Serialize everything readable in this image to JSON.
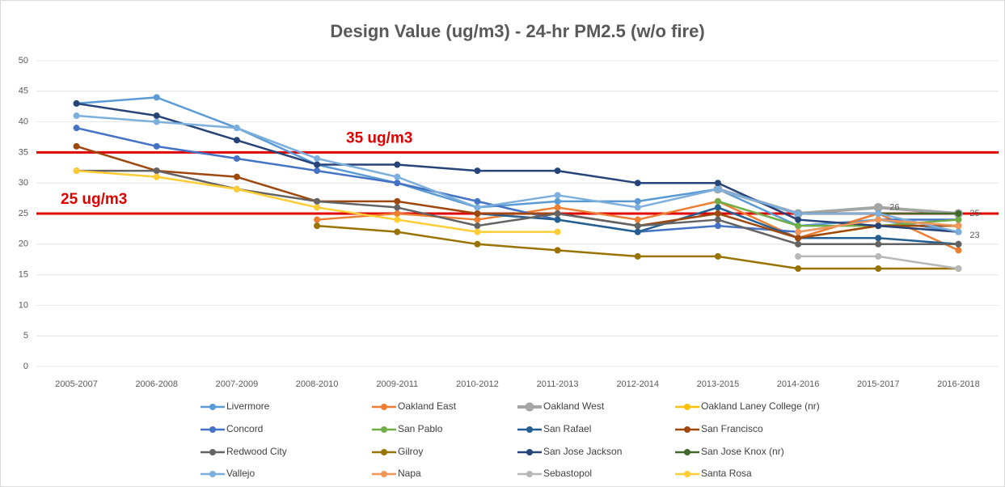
{
  "chart_data": {
    "type": "line",
    "title": "Design Value (ug/m3) - 24-hr PM2.5 (w/o fire)",
    "categories": [
      "2005-2007",
      "2006-2008",
      "2007-2009",
      "2008-2010",
      "2009-2011",
      "2010-2012",
      "2011-2013",
      "2012-2014",
      "2013-2015",
      "2014-2016",
      "2015-2017",
      "2016-2018"
    ],
    "ylim": [
      0,
      50
    ],
    "yticks": [
      0,
      5,
      10,
      15,
      20,
      25,
      30,
      35,
      40,
      45,
      50
    ],
    "grid": true,
    "legend": "bottom",
    "reference_lines": [
      {
        "value": 35,
        "label": "35 ug/m3",
        "color": "#e00000"
      },
      {
        "value": 25,
        "label": "25 ug/m3",
        "color": "#e00000"
      }
    ],
    "series": [
      {
        "name": "Livermore",
        "color": "#5b9bd5",
        "values": [
          43,
          44,
          39,
          33,
          30,
          26,
          27,
          27,
          29,
          23,
          24,
          22
        ]
      },
      {
        "name": "Oakland East",
        "color": "#ed7d31",
        "values": [
          null,
          null,
          null,
          24,
          25,
          24,
          26,
          24,
          27,
          21,
          25,
          19
        ]
      },
      {
        "name": "Oakland West",
        "color": "#a5a5a5",
        "values": [
          null,
          null,
          null,
          null,
          null,
          null,
          null,
          null,
          29,
          25,
          26,
          25
        ],
        "label_points": [
          10,
          11
        ]
      },
      {
        "name": "Oakland Laney College (nr)",
        "color": "#ffc000",
        "values": [
          null,
          null,
          null,
          null,
          null,
          null,
          null,
          null,
          null,
          21,
          23,
          23
        ],
        "label_points": [
          11
        ]
      },
      {
        "name": "Concord",
        "color": "#4472c4",
        "values": [
          39,
          36,
          34,
          32,
          30,
          27,
          24,
          22,
          23,
          22,
          24,
          24
        ]
      },
      {
        "name": "San Pablo",
        "color": "#70ad47",
        "values": [
          null,
          null,
          null,
          null,
          null,
          null,
          null,
          null,
          27,
          23,
          23,
          24
        ]
      },
      {
        "name": "San Rafael",
        "color": "#255e91",
        "values": [
          null,
          null,
          null,
          null,
          null,
          25,
          24,
          22,
          26,
          21,
          21,
          20
        ]
      },
      {
        "name": "San Francisco",
        "color": "#9e480e",
        "values": [
          36,
          32,
          31,
          27,
          27,
          25,
          25,
          23,
          25,
          21,
          23,
          23
        ]
      },
      {
        "name": "Redwood City",
        "color": "#636363",
        "values": [
          32,
          32,
          29,
          27,
          26,
          23,
          25,
          23,
          24,
          20,
          20,
          20
        ]
      },
      {
        "name": "Gilroy",
        "color": "#997300",
        "values": [
          null,
          null,
          null,
          23,
          22,
          20,
          19,
          18,
          18,
          16,
          16,
          16
        ]
      },
      {
        "name": "San Jose Jackson",
        "color": "#264478",
        "values": [
          43,
          41,
          37,
          33,
          33,
          32,
          32,
          30,
          30,
          24,
          23,
          22
        ]
      },
      {
        "name": "San Jose Knox (nr)",
        "color": "#43682b",
        "values": [
          null,
          null,
          null,
          null,
          null,
          null,
          null,
          null,
          null,
          25,
          25,
          25
        ]
      },
      {
        "name": "Vallejo",
        "color": "#7cafdd",
        "values": [
          41,
          40,
          39,
          34,
          31,
          26,
          28,
          26,
          29,
          25,
          25,
          22
        ]
      },
      {
        "name": "Napa",
        "color": "#f1975a",
        "values": [
          null,
          null,
          null,
          null,
          null,
          null,
          null,
          null,
          null,
          22,
          24,
          23
        ]
      },
      {
        "name": "Sebastopol",
        "color": "#b7b7b7",
        "values": [
          null,
          null,
          null,
          null,
          null,
          null,
          null,
          null,
          null,
          18,
          18,
          16
        ]
      },
      {
        "name": "Santa Rosa",
        "color": "#ffcd33",
        "values": [
          32,
          31,
          29,
          26,
          24,
          22,
          22,
          null,
          null,
          null,
          null,
          null
        ]
      }
    ]
  }
}
